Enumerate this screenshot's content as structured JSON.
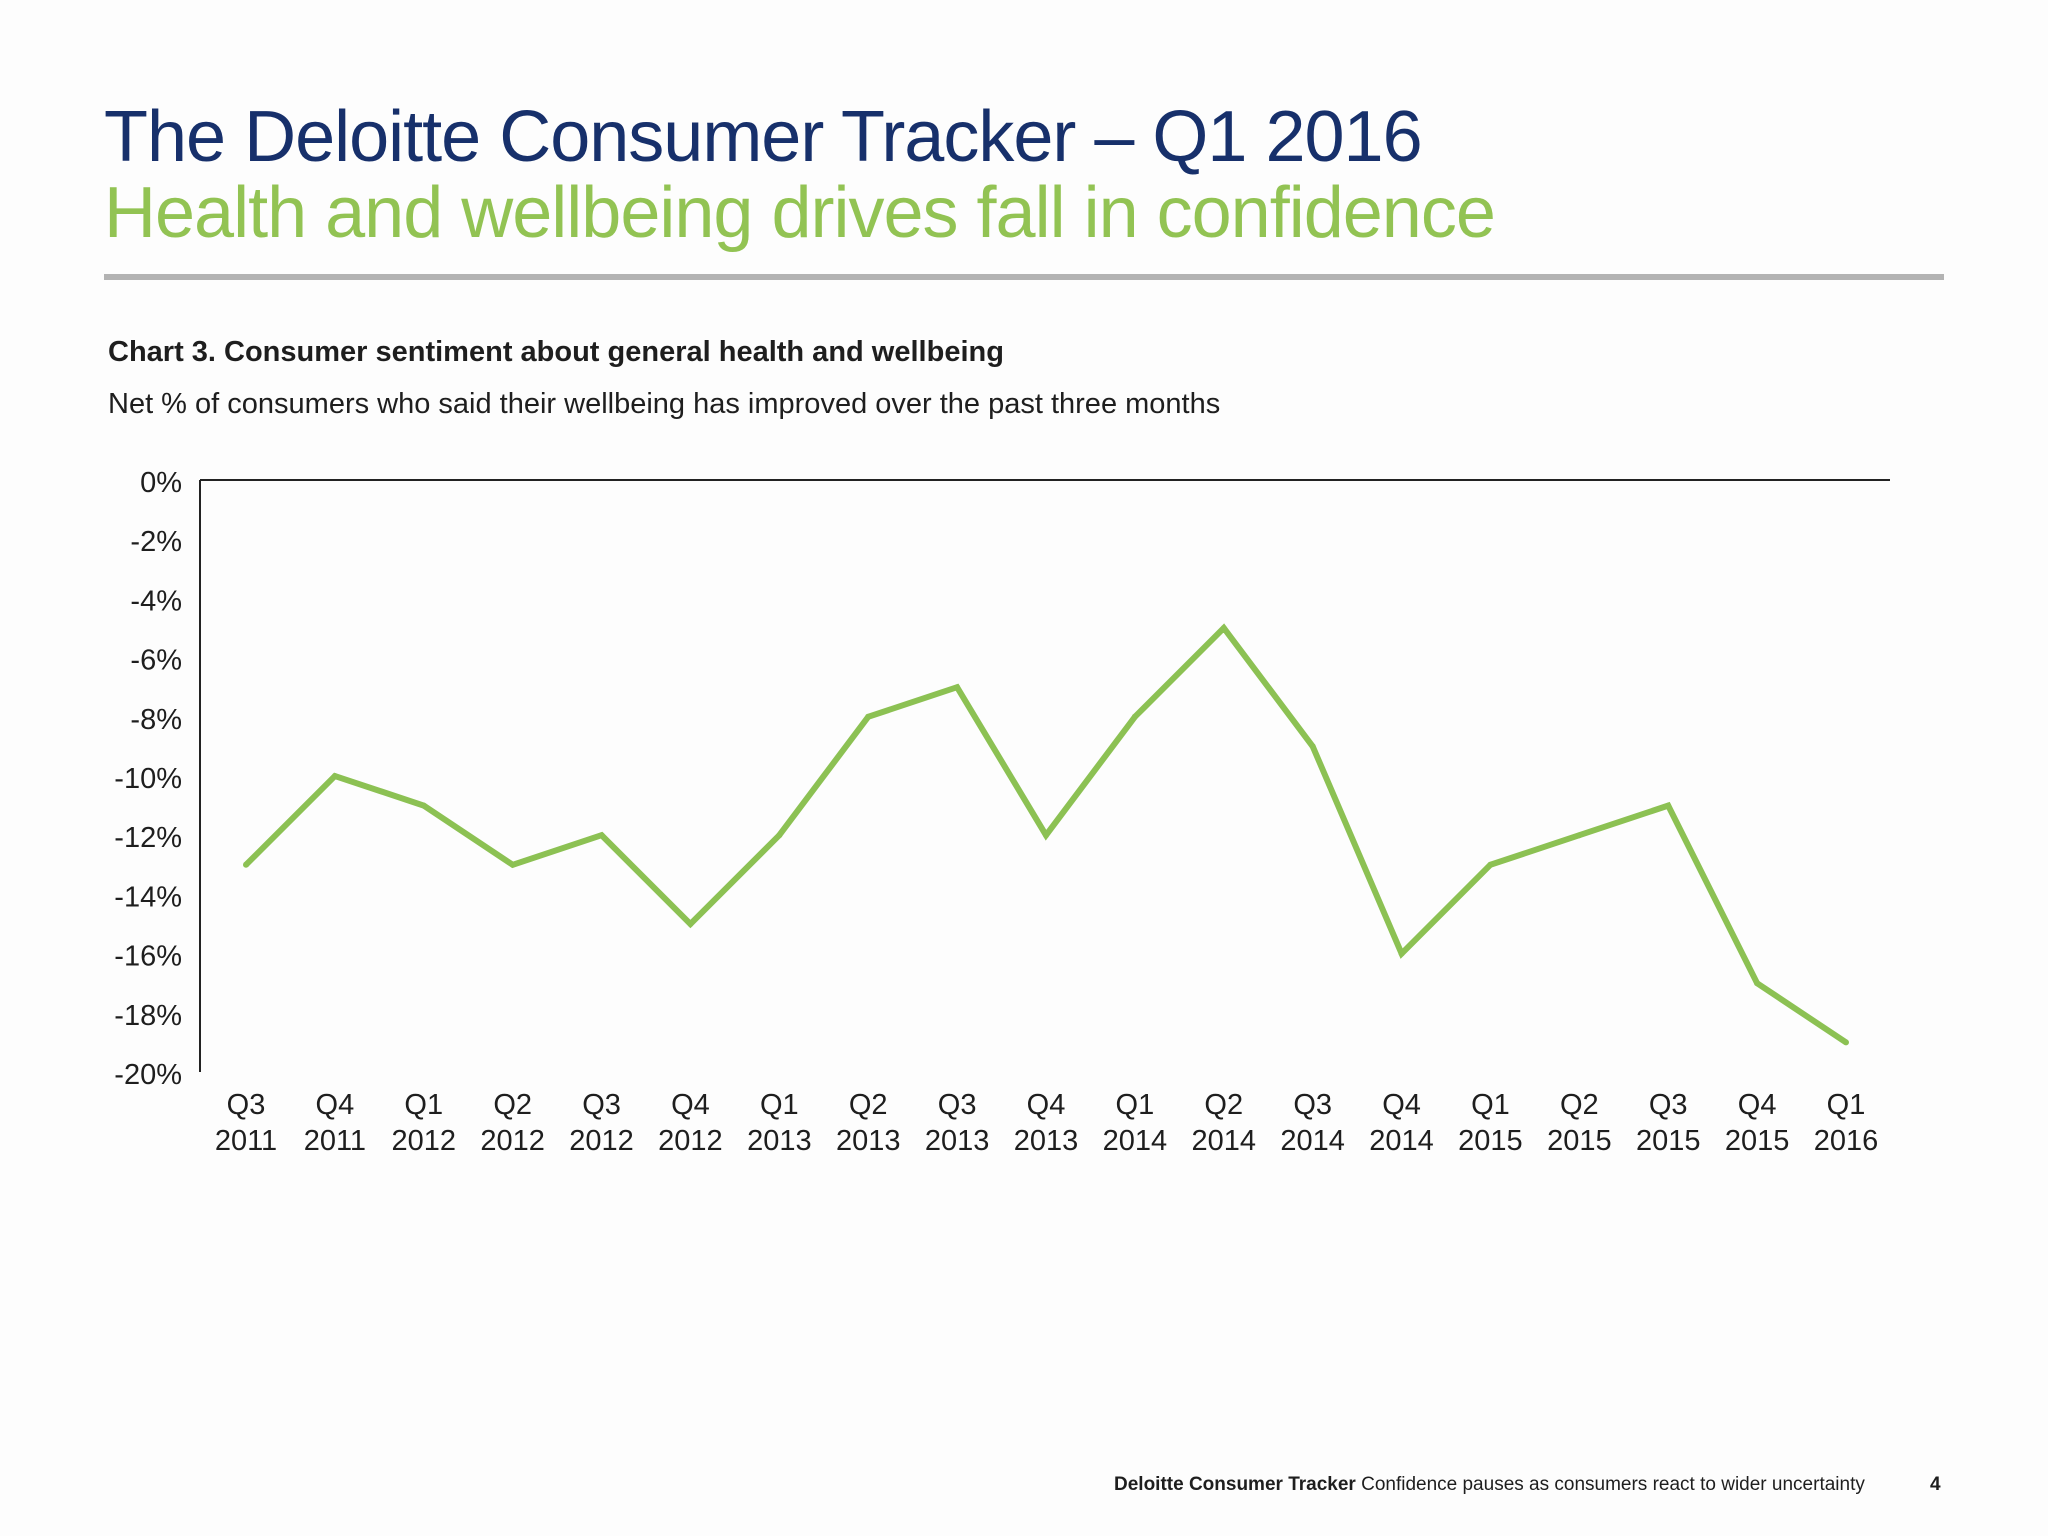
{
  "header": {
    "title": "The Deloitte Consumer Tracker – Q1 2016",
    "subtitle": "Health and wellbeing drives fall in confidence"
  },
  "chart_data": {
    "type": "line",
    "title": "Chart 3. Consumer sentiment about general health and wellbeing",
    "subtitle": "Net % of consumers who said their wellbeing has improved over the past three months",
    "categories": [
      [
        "Q3",
        "2011"
      ],
      [
        "Q4",
        "2011"
      ],
      [
        "Q1",
        "2012"
      ],
      [
        "Q2",
        "2012"
      ],
      [
        "Q3",
        "2012"
      ],
      [
        "Q4",
        "2012"
      ],
      [
        "Q1",
        "2013"
      ],
      [
        "Q2",
        "2013"
      ],
      [
        "Q3",
        "2013"
      ],
      [
        "Q4",
        "2013"
      ],
      [
        "Q1",
        "2014"
      ],
      [
        "Q2",
        "2014"
      ],
      [
        "Q3",
        "2014"
      ],
      [
        "Q4",
        "2014"
      ],
      [
        "Q1",
        "2015"
      ],
      [
        "Q2",
        "2015"
      ],
      [
        "Q3",
        "2015"
      ],
      [
        "Q4",
        "2015"
      ],
      [
        "Q1",
        "2016"
      ]
    ],
    "series": [
      {
        "values": [
          -13,
          -10,
          -11,
          -13,
          -12,
          -15,
          -12,
          -8,
          -7,
          -12,
          -8,
          -5,
          -9,
          -16,
          -13,
          -12,
          -11,
          -17,
          -19
        ],
        "color": "#8cc153"
      }
    ],
    "xlabel": "",
    "ylabel": "",
    "ylim": [
      -20,
      0
    ],
    "yticks": [
      0,
      -2,
      -4,
      -6,
      -8,
      -10,
      -12,
      -14,
      -16,
      -18,
      -20
    ],
    "ytick_labels": [
      "0%",
      "-2%",
      "-4%",
      "-6%",
      "-8%",
      "-10%",
      "-12%",
      "-14%",
      "-16%",
      "-18%",
      "-20%"
    ],
    "grid": false,
    "legend": "none"
  },
  "footer": {
    "brand": "Deloitte Consumer Tracker",
    "text": "Confidence pauses as consumers react to wider uncertainty",
    "page": "4"
  }
}
